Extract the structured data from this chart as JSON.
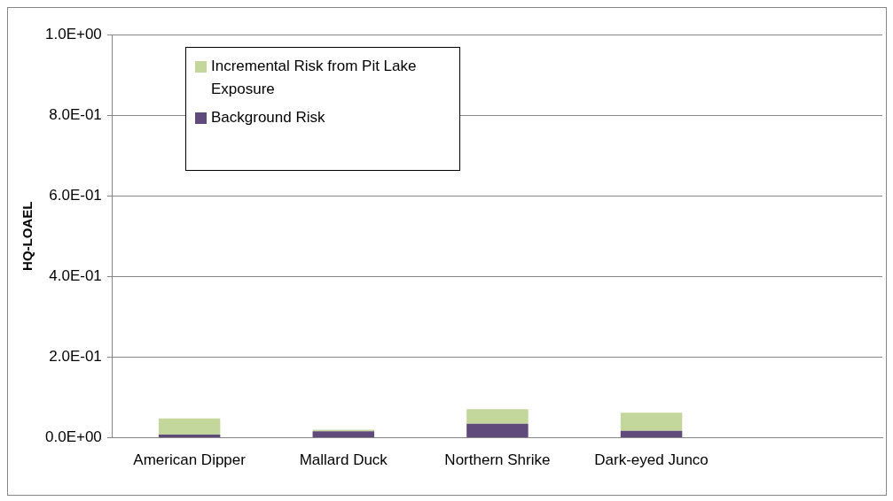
{
  "chart_data": {
    "type": "bar",
    "stacked": true,
    "categories": [
      "American Dipper",
      "Mallard Duck",
      "Northern Shrike",
      "Dark-eyed Junco",
      null
    ],
    "series": [
      {
        "name": "Background Risk",
        "color": "#604a7b",
        "values": [
          0.008,
          0.016,
          0.035,
          0.017,
          null
        ]
      },
      {
        "name": "Incremental Risk from Pit Lake Exposure",
        "color": "#c3d69b",
        "values": [
          0.04,
          0.004,
          0.036,
          0.045,
          null
        ]
      }
    ],
    "ylabel": "HQ-LOAEL",
    "ylim": [
      0,
      1
    ],
    "yticks": [
      {
        "value": 0,
        "label": "0.0E+00"
      },
      {
        "value": 0.2,
        "label": "2.0E-01"
      },
      {
        "value": 0.4,
        "label": "4.0E-01"
      },
      {
        "value": 0.6,
        "label": "6.0E-01"
      },
      {
        "value": 0.8,
        "label": "8.0E-01"
      },
      {
        "value": 1,
        "label": "1.0E+00"
      }
    ],
    "grid": "y",
    "legend": "top left"
  }
}
